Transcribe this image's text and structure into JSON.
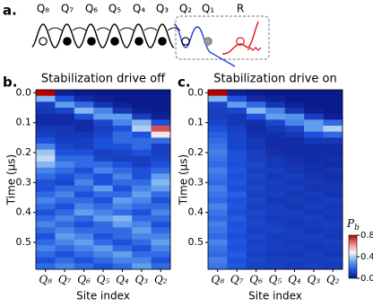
{
  "diagram": {
    "panel_label": "a.",
    "labels": [
      "Q₈",
      "Q₇",
      "Q₆",
      "Q₅",
      "Q₄",
      "Q₃",
      "Q₂",
      "Q₁",
      "R"
    ]
  },
  "colorbar": {
    "label": "P",
    "label_sub": "b",
    "lim": [
      0,
      0.8
    ],
    "ticks": [
      {
        "value": 0,
        "label": "0.0"
      },
      {
        "value": 0.4,
        "label": "0.4"
      },
      {
        "value": 0.8,
        "label": "0.8"
      }
    ],
    "colormap": [
      "#0b1a8c",
      "#1f55e0",
      "#6aa8f0",
      "#f5f5f5",
      "#f08080",
      "#b50000"
    ]
  },
  "chart_data": [
    {
      "type": "heatmap",
      "panel_label": "b.",
      "title": "Stabilization drive off",
      "xlabel": "Site index",
      "ylabel": "Time (μs)",
      "categories": [
        "Q₈",
        "Q₇",
        "Q₆",
        "Q₅",
        "Q₄",
        "Q₃",
        "Q₂"
      ],
      "y": [
        0,
        0.02,
        0.04,
        0.06,
        0.08,
        0.1,
        0.12,
        0.14,
        0.16,
        0.18,
        0.2,
        0.22,
        0.24,
        0.26,
        0.28,
        0.3,
        0.32,
        0.34,
        0.36,
        0.38,
        0.4,
        0.42,
        0.44,
        0.46,
        0.48,
        0.5,
        0.52,
        0.54,
        0.56,
        0.58
      ],
      "ylim": [
        -0.01,
        0.59
      ],
      "yticks": [
        {
          "value": 0,
          "label": "0.0"
        },
        {
          "value": 0.1,
          "label": "0.1"
        },
        {
          "value": 0.2,
          "label": "0.2"
        },
        {
          "value": 0.3,
          "label": "0.3"
        },
        {
          "value": 0.4,
          "label": "0.4"
        },
        {
          "value": 0.5,
          "label": "0.5"
        }
      ],
      "values": [
        [
          0.8,
          0.02,
          0,
          0,
          0,
          0,
          0
        ],
        [
          0.35,
          0.15,
          0.05,
          0.02,
          0,
          0,
          0
        ],
        [
          0.1,
          0.3,
          0.2,
          0.08,
          0.02,
          0,
          0
        ],
        [
          0.08,
          0.12,
          0.35,
          0.25,
          0.08,
          0.02,
          0
        ],
        [
          0.05,
          0.05,
          0.15,
          0.3,
          0.3,
          0.1,
          0.02
        ],
        [
          0.05,
          0.05,
          0.05,
          0.12,
          0.25,
          0.35,
          0.15
        ],
        [
          0.08,
          0.08,
          0.05,
          0.1,
          0.15,
          0.4,
          0.7
        ],
        [
          0.1,
          0.08,
          0.08,
          0.12,
          0.2,
          0.15,
          0.5
        ],
        [
          0.15,
          0.1,
          0.1,
          0.15,
          0.2,
          0.2,
          0.2
        ],
        [
          0.25,
          0.12,
          0.1,
          0.15,
          0.15,
          0.2,
          0.1
        ],
        [
          0.38,
          0.15,
          0.15,
          0.1,
          0.12,
          0.15,
          0.1
        ],
        [
          0.42,
          0.2,
          0.2,
          0.12,
          0.1,
          0.1,
          0.12
        ],
        [
          0.35,
          0.25,
          0.2,
          0.2,
          0.15,
          0.1,
          0.15
        ],
        [
          0.25,
          0.2,
          0.15,
          0.25,
          0.2,
          0.15,
          0.2
        ],
        [
          0.2,
          0.15,
          0.2,
          0.15,
          0.25,
          0.15,
          0.3
        ],
        [
          0.15,
          0.12,
          0.25,
          0.15,
          0.2,
          0.2,
          0.35
        ],
        [
          0.15,
          0.2,
          0.2,
          0.3,
          0.15,
          0.25,
          0.3
        ],
        [
          0.2,
          0.25,
          0.15,
          0.2,
          0.2,
          0.3,
          0.2
        ],
        [
          0.25,
          0.2,
          0.2,
          0.15,
          0.3,
          0.25,
          0.15
        ],
        [
          0.2,
          0.15,
          0.25,
          0.2,
          0.25,
          0.2,
          0.2
        ],
        [
          0.15,
          0.2,
          0.3,
          0.25,
          0.2,
          0.15,
          0.25
        ],
        [
          0.2,
          0.25,
          0.2,
          0.3,
          0.35,
          0.2,
          0.2
        ],
        [
          0.25,
          0.2,
          0.15,
          0.2,
          0.3,
          0.25,
          0.15
        ],
        [
          0.2,
          0.25,
          0.2,
          0.2,
          0.2,
          0.3,
          0.2
        ],
        [
          0.15,
          0.3,
          0.25,
          0.15,
          0.2,
          0.25,
          0.25
        ],
        [
          0.2,
          0.25,
          0.3,
          0.2,
          0.15,
          0.2,
          0.3
        ],
        [
          0.25,
          0.2,
          0.25,
          0.3,
          0.2,
          0.15,
          0.25
        ],
        [
          0.2,
          0.15,
          0.2,
          0.25,
          0.3,
          0.2,
          0.2
        ],
        [
          0.15,
          0.2,
          0.15,
          0.2,
          0.25,
          0.25,
          0.15
        ],
        [
          0.2,
          0.25,
          0.2,
          0.15,
          0.2,
          0.3,
          0.2
        ]
      ]
    },
    {
      "type": "heatmap",
      "panel_label": "c.",
      "title": "Stabilization drive on",
      "xlabel": "Site index",
      "ylabel": "Time (μs)",
      "categories": [
        "Q₈",
        "Q₇",
        "Q₆",
        "Q₅",
        "Q₄",
        "Q₃",
        "Q₂"
      ],
      "y": [
        0,
        0.02,
        0.04,
        0.06,
        0.08,
        0.1,
        0.12,
        0.14,
        0.16,
        0.18,
        0.2,
        0.22,
        0.24,
        0.26,
        0.28,
        0.3,
        0.32,
        0.34,
        0.36,
        0.38,
        0.4,
        0.42,
        0.44,
        0.46,
        0.48,
        0.5,
        0.52,
        0.54,
        0.56,
        0.58
      ],
      "ylim": [
        -0.01,
        0.59
      ],
      "yticks": [
        {
          "value": 0,
          "label": "0.0"
        },
        {
          "value": 0.1,
          "label": "0.1"
        },
        {
          "value": 0.2,
          "label": "0.2"
        },
        {
          "value": 0.3,
          "label": "0.3"
        },
        {
          "value": 0.4,
          "label": "0.4"
        },
        {
          "value": 0.5,
          "label": "0.5"
        }
      ],
      "values": [
        [
          0.8,
          0.02,
          0,
          0,
          0,
          0,
          0
        ],
        [
          0.35,
          0.15,
          0.05,
          0.02,
          0,
          0,
          0
        ],
        [
          0.12,
          0.3,
          0.2,
          0.08,
          0.02,
          0,
          0
        ],
        [
          0.1,
          0.12,
          0.35,
          0.25,
          0.08,
          0.02,
          0
        ],
        [
          0.1,
          0.08,
          0.15,
          0.3,
          0.28,
          0.1,
          0.02
        ],
        [
          0.12,
          0.08,
          0.06,
          0.12,
          0.25,
          0.3,
          0.2
        ],
        [
          0.15,
          0.1,
          0.05,
          0.08,
          0.12,
          0.3,
          0.4
        ],
        [
          0.18,
          0.12,
          0.06,
          0.06,
          0.08,
          0.15,
          0.2
        ],
        [
          0.2,
          0.12,
          0.08,
          0.05,
          0.05,
          0.08,
          0.08
        ],
        [
          0.22,
          0.12,
          0.08,
          0.05,
          0.05,
          0.05,
          0.05
        ],
        [
          0.24,
          0.14,
          0.1,
          0.06,
          0.05,
          0.05,
          0.05
        ],
        [
          0.22,
          0.15,
          0.1,
          0.08,
          0.06,
          0.05,
          0.06
        ],
        [
          0.2,
          0.14,
          0.12,
          0.08,
          0.07,
          0.06,
          0.05
        ],
        [
          0.24,
          0.16,
          0.1,
          0.1,
          0.08,
          0.06,
          0.07
        ],
        [
          0.22,
          0.14,
          0.12,
          0.08,
          0.1,
          0.07,
          0.06
        ],
        [
          0.2,
          0.16,
          0.1,
          0.1,
          0.08,
          0.08,
          0.07
        ],
        [
          0.24,
          0.14,
          0.12,
          0.09,
          0.1,
          0.07,
          0.08
        ],
        [
          0.22,
          0.18,
          0.1,
          0.1,
          0.08,
          0.09,
          0.07
        ],
        [
          0.2,
          0.15,
          0.12,
          0.08,
          0.09,
          0.08,
          0.1
        ],
        [
          0.25,
          0.16,
          0.1,
          0.1,
          0.08,
          0.1,
          0.08
        ],
        [
          0.22,
          0.14,
          0.12,
          0.1,
          0.1,
          0.08,
          0.09
        ],
        [
          0.2,
          0.17,
          0.11,
          0.09,
          0.09,
          0.1,
          0.08
        ],
        [
          0.24,
          0.15,
          0.12,
          0.1,
          0.08,
          0.09,
          0.1
        ],
        [
          0.22,
          0.16,
          0.1,
          0.11,
          0.1,
          0.08,
          0.09
        ],
        [
          0.2,
          0.14,
          0.12,
          0.09,
          0.1,
          0.1,
          0.08
        ],
        [
          0.25,
          0.16,
          0.11,
          0.1,
          0.09,
          0.09,
          0.1
        ],
        [
          0.22,
          0.15,
          0.12,
          0.1,
          0.1,
          0.08,
          0.09
        ],
        [
          0.2,
          0.17,
          0.1,
          0.09,
          0.08,
          0.1,
          0.08
        ],
        [
          0.24,
          0.15,
          0.12,
          0.1,
          0.1,
          0.09,
          0.1
        ],
        [
          0.22,
          0.16,
          0.11,
          0.1,
          0.09,
          0.1,
          0.09
        ]
      ]
    }
  ]
}
